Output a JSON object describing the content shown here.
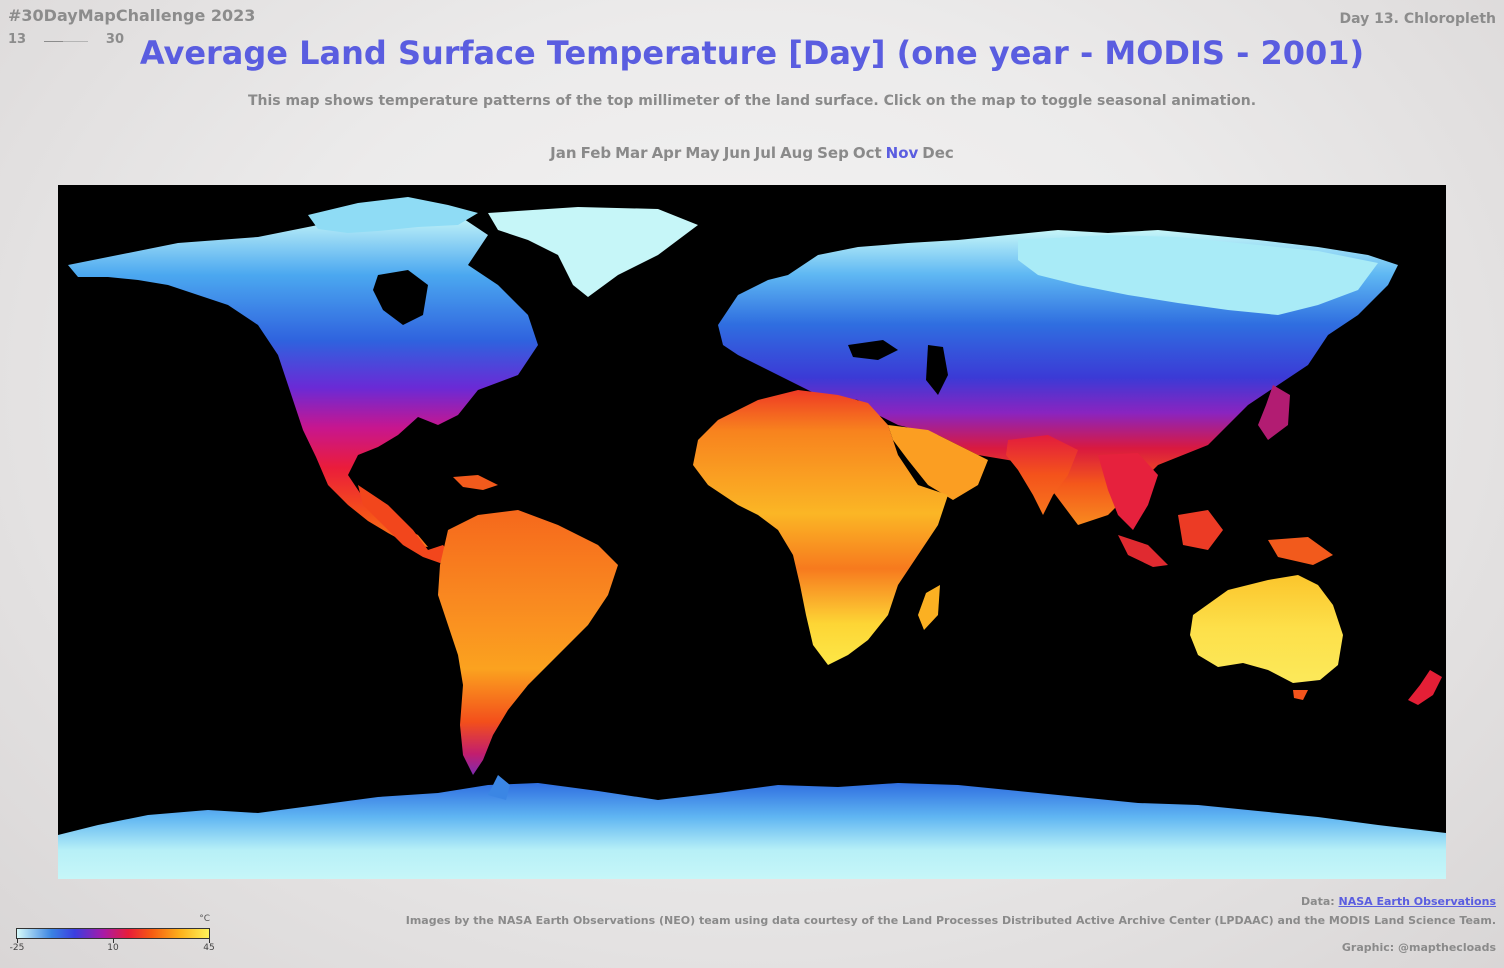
{
  "header": {
    "challenge": "#30DayMapChallenge 2023",
    "progress": {
      "current": "13",
      "total": "30",
      "fraction": 0.433
    },
    "day_label": "Day 13. Chloropleth"
  },
  "title": "Average Land Surface Temperature [Day] (one year - MODIS - 2001)",
  "subtitle": "This map shows temperature patterns of the top millimeter of the land surface. Click on the map to toggle seasonal animation.",
  "months": {
    "items": [
      "Jan",
      "Feb",
      "Mar",
      "Apr",
      "May",
      "Jun",
      "Jul",
      "Aug",
      "Sep",
      "Oct",
      "Nov",
      "Dec"
    ],
    "selected_index": 10,
    "active_color": "#5a5de0"
  },
  "map": {
    "ocean_color": "#000000",
    "ice_color": "#c6f6f8"
  },
  "legend": {
    "unit": "°C",
    "min_label": "-25",
    "mid_label": "10",
    "max_label": "45",
    "min": -25,
    "mid": 10,
    "max": 45
  },
  "credits": {
    "data_prefix": "Data: ",
    "data_link": "NASA Earth Observations",
    "images_line": "Images by the NASA Earth Observations (NEO) team using data courtesy of the Land Processes Distributed Active Archive Center (LPDAAC) and the MODIS Land Science Team.",
    "graphic_line": "Graphic: @mapthecloads"
  },
  "colors": {
    "title": "#5a5de0",
    "muted_text": "#8a8a8a"
  }
}
